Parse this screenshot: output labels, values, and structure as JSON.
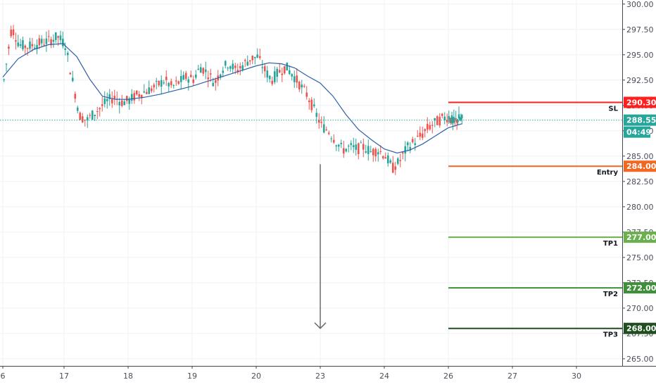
{
  "chart_data": {
    "type": "candlestick",
    "x_tick_labels": [
      "6",
      "17",
      "18",
      "19",
      "20",
      "23",
      "24",
      "26",
      "27",
      "30"
    ],
    "y_ticks": [
      "300.00",
      "297.50",
      "295.00",
      "292.50",
      "290.00",
      "287.50",
      "285.00",
      "282.50",
      "280.00",
      "277.50",
      "275.00",
      "272.50",
      "270.00",
      "267.50",
      "265.00"
    ],
    "ylim": [
      264.3,
      300.4
    ],
    "grid": true,
    "colors": {
      "up": "#26a69a",
      "down": "#ef5350",
      "moving_average": "#2e5fa8",
      "current_price": "#26a69a",
      "sl": "#ff1f1f",
      "entry": "#f26722",
      "tp1": "#6ab04c",
      "tp2": "#3e8e3a",
      "tp3": "#1f4f1f",
      "arrow": "#6b6b6b",
      "grid": "#eef0f4"
    },
    "current_price": {
      "value": 288.55,
      "label": "288.55",
      "countdown": "04:49"
    },
    "levels": [
      {
        "key": "sl",
        "label": "SL",
        "value": 290.3,
        "value_label": "290.30"
      },
      {
        "key": "entry",
        "label": "Entry",
        "value": 284.0,
        "value_label": "284.00"
      },
      {
        "key": "tp1",
        "label": "TP1",
        "value": 277.0,
        "value_label": "277.00"
      },
      {
        "key": "tp2",
        "label": "TP2",
        "value": 272.0,
        "value_label": "272.00"
      },
      {
        "key": "tp3",
        "label": "TP3",
        "value": 268.0,
        "value_label": "268.00"
      }
    ],
    "arrow": {
      "from_value": 284.2,
      "to_value": 268.0,
      "direction": "down"
    },
    "price_series": [
      {
        "day": "6",
        "points": [
          292.5,
          297.7,
          296.0,
          295.8,
          296.0,
          296.2,
          296.4,
          296.8,
          296.0
        ]
      },
      {
        "day": "17",
        "points": [
          296.0,
          292.5,
          289.0,
          288.5,
          289.2,
          289.8,
          290.5,
          290.8,
          290.3,
          290.5
        ]
      },
      {
        "day": "18",
        "points": [
          290.5,
          291.0,
          291.3,
          291.6,
          292.0,
          292.5,
          291.8,
          292.3,
          292.8,
          292.6
        ]
      },
      {
        "day": "19",
        "points": [
          292.6,
          293.8,
          293.2,
          292.2,
          293.6,
          294.2,
          293.4,
          294.0,
          294.6,
          294.8
        ]
      },
      {
        "day": "20",
        "points": [
          294.8,
          293.5,
          292.5,
          293.3,
          293.8,
          293.0,
          292.0,
          291.0,
          289.5,
          288.0
        ]
      },
      {
        "day": "23",
        "points": [
          288.0,
          287.5,
          286.5,
          285.6,
          285.9,
          285.7,
          285.9,
          285.4,
          285.6,
          285.0
        ]
      },
      {
        "day": "24",
        "points": [
          285.0,
          283.8,
          284.5,
          285.8,
          286.4,
          287.0,
          287.8,
          288.3,
          288.7,
          288.9
        ]
      },
      {
        "day": "26",
        "points": [
          288.9,
          288.3,
          288.7,
          288.55
        ]
      }
    ],
    "moving_average": [
      {
        "day": "6",
        "points": [
          292.8,
          294.6,
          295.5,
          296.0,
          296.1
        ]
      },
      {
        "day": "17",
        "points": [
          296.0,
          294.8,
          292.6,
          290.9,
          290.6,
          290.6
        ]
      },
      {
        "day": "18",
        "points": [
          290.6,
          290.8,
          291.1,
          291.5,
          291.9
        ]
      },
      {
        "day": "19",
        "points": [
          291.9,
          292.4,
          292.9,
          293.4,
          293.9
        ]
      },
      {
        "day": "20",
        "points": [
          293.9,
          294.2,
          294.1,
          293.7,
          292.9,
          292.2
        ]
      },
      {
        "day": "23",
        "points": [
          292.2,
          290.9,
          289.1,
          287.6,
          286.6,
          285.7
        ]
      },
      {
        "day": "24",
        "points": [
          285.7,
          285.3,
          285.6,
          286.2,
          287.0,
          287.8
        ]
      },
      {
        "day": "26",
        "points": [
          287.8,
          288.2
        ]
      }
    ]
  }
}
